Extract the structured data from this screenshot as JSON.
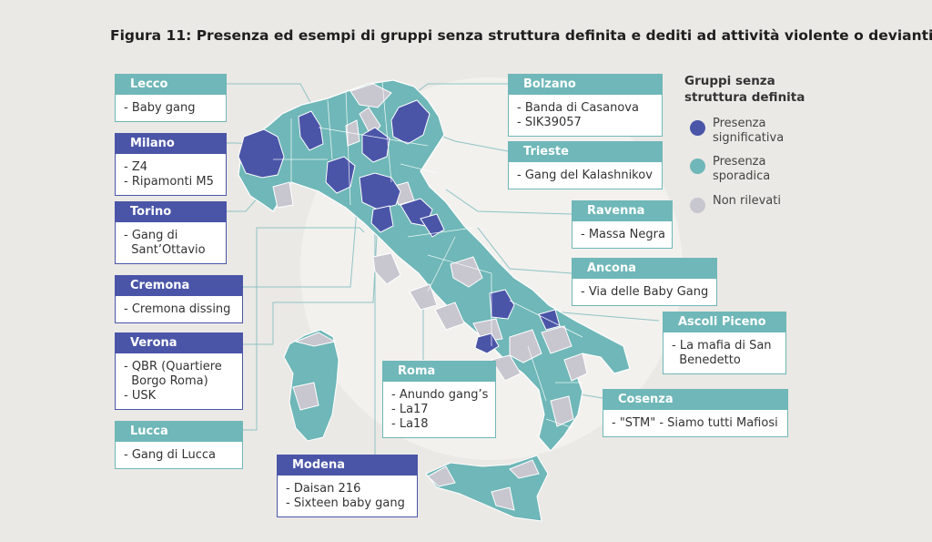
{
  "title": "Figura 11: Presenza ed esempi di gruppi senza struttura definita e dediti ad attività violente o devianti",
  "colors": {
    "significant": "#4a55a8",
    "sporadic": "#6fb7b8",
    "not_detected": "#c8c6cf"
  },
  "legend": {
    "title_line1": "Gruppi senza",
    "title_line2": "struttura definita",
    "significant_line1": "Presenza",
    "significant_line2": "significativa",
    "sporadic_line1": "Presenza",
    "sporadic_line2": "sporadica",
    "not_detected": "Non rilevati"
  },
  "callouts": {
    "lecco": {
      "name": "Lecco",
      "items": [
        "- Baby gang"
      ]
    },
    "milano": {
      "name": "Milano",
      "items": [
        "- Z4",
        "- Ripamonti M5"
      ]
    },
    "torino": {
      "name": "Torino",
      "items": [
        "- Gang di",
        "  Sant’Ottavio"
      ]
    },
    "cremona": {
      "name": "Cremona",
      "items": [
        "- Cremona dissing"
      ]
    },
    "verona": {
      "name": "Verona",
      "items": [
        "- QBR (Quartiere",
        "  Borgo Roma)",
        "- USK"
      ]
    },
    "lucca": {
      "name": "Lucca",
      "items": [
        "- Gang di Lucca"
      ]
    },
    "modena": {
      "name": "Modena",
      "items": [
        "- Daisan 216",
        "- Sixteen baby gang"
      ]
    },
    "roma": {
      "name": "Roma",
      "items": [
        "- Anundo gang’s",
        "- La17",
        "- La18"
      ]
    },
    "bolzano": {
      "name": "Bolzano",
      "items": [
        "- Banda di Casanova",
        "- SIK39057"
      ]
    },
    "trieste": {
      "name": "Trieste",
      "items": [
        "- Gang del Kalashnikov"
      ]
    },
    "ravenna": {
      "name": "Ravenna",
      "items": [
        "- Massa Negra"
      ]
    },
    "ancona": {
      "name": "Ancona",
      "items": [
        "- Via delle Baby Gang"
      ]
    },
    "ascoli": {
      "name": "Ascoli Piceno",
      "items": [
        "- La mafia di San",
        "  Benedetto"
      ]
    },
    "cosenza": {
      "name": "Cosenza",
      "items": [
        "- \"STM\" - Siamo tutti Mafiosi"
      ]
    }
  }
}
